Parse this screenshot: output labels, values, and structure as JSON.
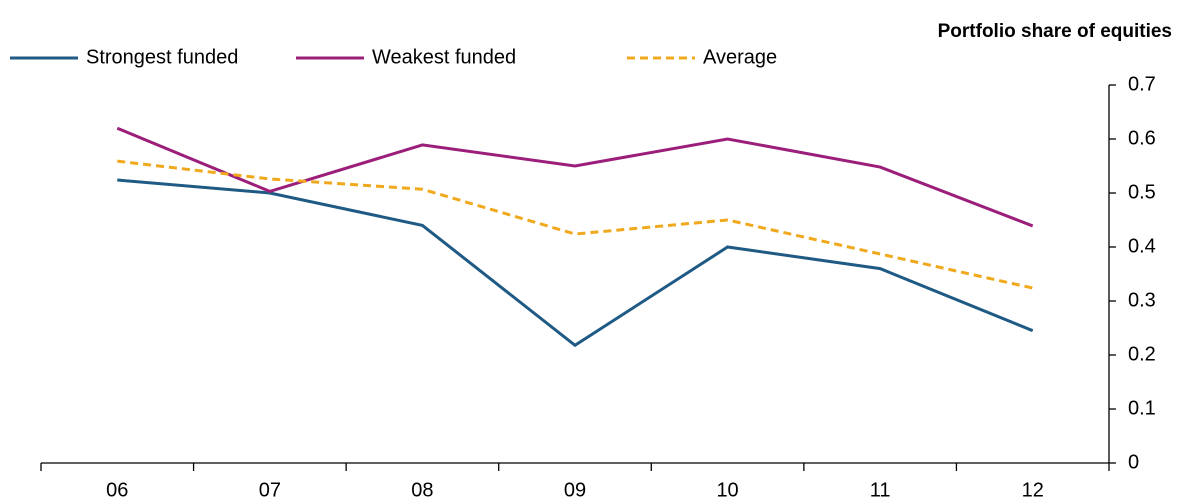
{
  "chart_data": {
    "type": "line",
    "y_axis_label": "Portfolio share of equities",
    "categories": [
      "06",
      "07",
      "08",
      "09",
      "10",
      "11",
      "12"
    ],
    "series": [
      {
        "name": "Strongest funded",
        "color": "#1f5a85",
        "dash": false,
        "values": [
          0.524,
          0.5,
          0.44,
          0.218,
          0.4,
          0.36,
          0.245
        ]
      },
      {
        "name": "Weakest funded",
        "color": "#9b1f7a",
        "dash": false,
        "values": [
          0.62,
          0.503,
          0.589,
          0.55,
          0.6,
          0.548,
          0.439
        ]
      },
      {
        "name": "Average",
        "color": "#f0a81c",
        "dash": true,
        "values": [
          0.559,
          0.526,
          0.507,
          0.424,
          0.45,
          0.387,
          0.324
        ]
      }
    ],
    "ylim": [
      0,
      0.7
    ],
    "yticks": [
      0,
      0.1,
      0.2,
      0.3,
      0.4,
      0.5,
      0.6,
      0.7
    ],
    "y_axis_side": "right",
    "grid": false,
    "legend": "top-left"
  }
}
